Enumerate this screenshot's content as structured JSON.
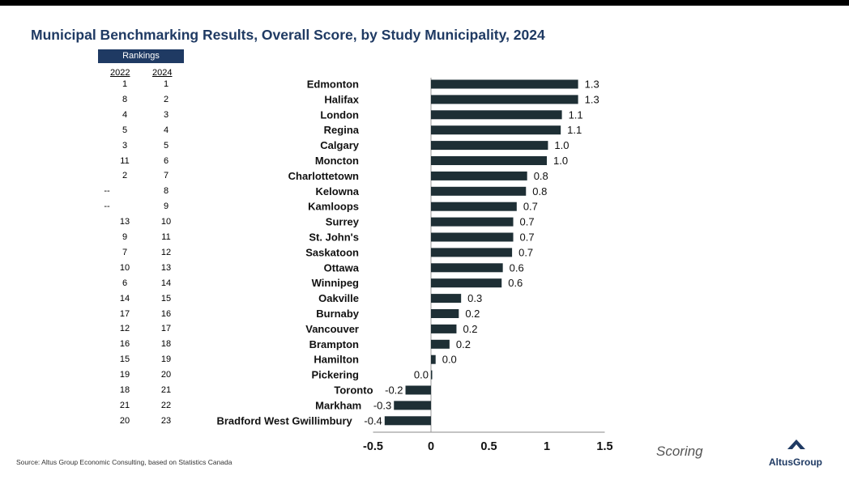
{
  "title": "Municipal Benchmarking Results, Overall Score, by Study Municipality, 2024",
  "rankings": {
    "header": "Rankings",
    "col_2022": "2022",
    "col_2024": "2024",
    "rows": [
      {
        "r2022": "1",
        "r2024": "1"
      },
      {
        "r2022": "8",
        "r2024": "2"
      },
      {
        "r2022": "4",
        "r2024": "3"
      },
      {
        "r2022": "5",
        "r2024": "4"
      },
      {
        "r2022": "3",
        "r2024": "5"
      },
      {
        "r2022": "11",
        "r2024": "6"
      },
      {
        "r2022": "2",
        "r2024": "7"
      },
      {
        "r2022": "--",
        "r2024": "8"
      },
      {
        "r2022": "--",
        "r2024": "9"
      },
      {
        "r2022": "13",
        "r2024": "10"
      },
      {
        "r2022": "9",
        "r2024": "11"
      },
      {
        "r2022": "7",
        "r2024": "12"
      },
      {
        "r2022": "10",
        "r2024": "13"
      },
      {
        "r2022": "6",
        "r2024": "14"
      },
      {
        "r2022": "14",
        "r2024": "15"
      },
      {
        "r2022": "17",
        "r2024": "16"
      },
      {
        "r2022": "12",
        "r2024": "17"
      },
      {
        "r2022": "16",
        "r2024": "18"
      },
      {
        "r2022": "15",
        "r2024": "19"
      },
      {
        "r2022": "19",
        "r2024": "20"
      },
      {
        "r2022": "18",
        "r2024": "21"
      },
      {
        "r2022": "21",
        "r2024": "22"
      },
      {
        "r2022": "20",
        "r2024": "23"
      }
    ]
  },
  "chart_data": {
    "type": "bar",
    "orientation": "horizontal",
    "categories": [
      "Edmonton",
      "Halifax",
      "London",
      "Regina",
      "Calgary",
      "Moncton",
      "Charlottetown",
      "Kelowna",
      "Kamloops",
      "Surrey",
      "St. John's",
      "Saskatoon",
      "Ottawa",
      "Winnipeg",
      "Oakville",
      "Burnaby",
      "Vancouver",
      "Brampton",
      "Hamilton",
      "Pickering",
      "Toronto",
      "Markham",
      "Bradford West Gwillimbury"
    ],
    "values": [
      1.27,
      1.27,
      1.13,
      1.12,
      1.01,
      1.0,
      0.83,
      0.82,
      0.74,
      0.71,
      0.71,
      0.7,
      0.62,
      0.61,
      0.26,
      0.24,
      0.22,
      0.16,
      0.04,
      0.0,
      -0.22,
      -0.32,
      -0.4
    ],
    "labels": [
      "1.3",
      "1.3",
      "1.1",
      "1.1",
      "1.0",
      "1.0",
      "0.8",
      "0.8",
      "0.7",
      "0.7",
      "0.7",
      "0.7",
      "0.6",
      "0.6",
      "0.3",
      "0.2",
      "0.2",
      "0.2",
      "0.0",
      "0.0",
      "-0.2",
      "-0.3",
      "-0.4"
    ],
    "xlim": [
      -0.5,
      1.5
    ],
    "xticks": [
      "-0.5",
      "0",
      "0.5",
      "1",
      "1.5"
    ],
    "xlabel": "Scoring",
    "grid": false,
    "bar_color": "#1e2f35"
  },
  "source": "Source:  Altus Group Economic Consulting, based on Statistics Canada",
  "logo": {
    "text": "AltusGroup",
    "icon": "altus-triangle-icon"
  }
}
